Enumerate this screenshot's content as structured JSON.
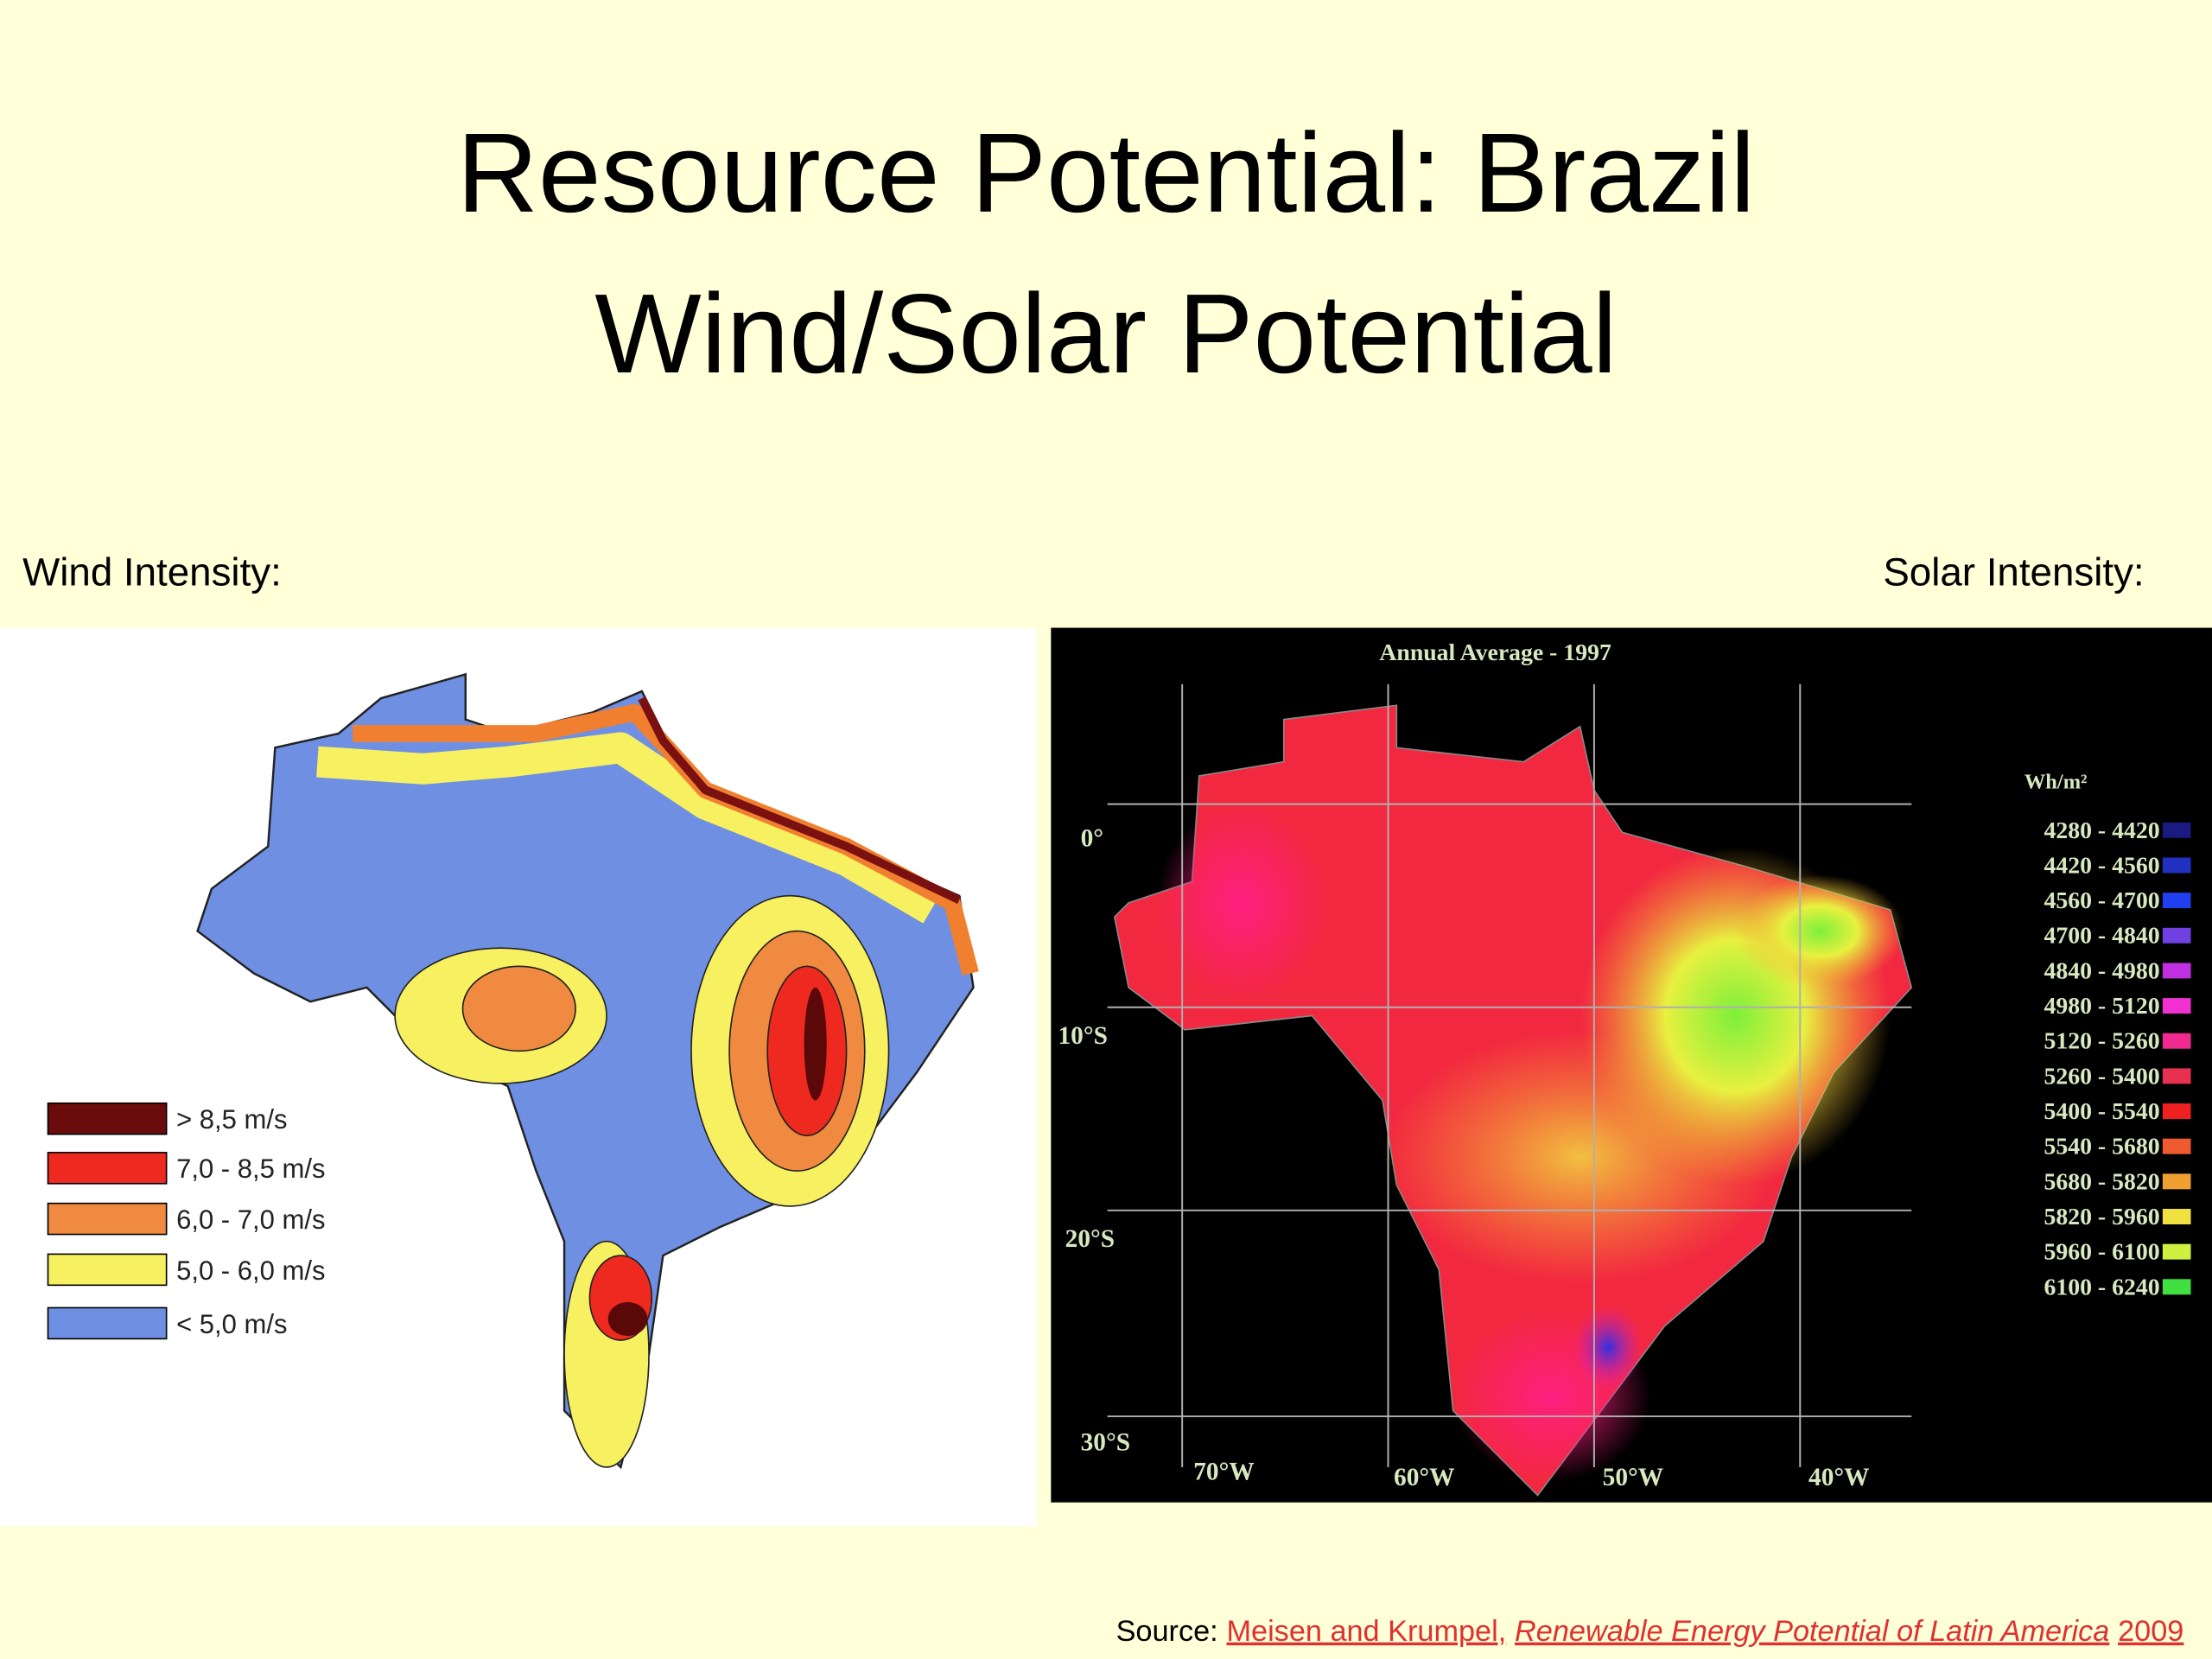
{
  "title": {
    "line1": "Resource Potential: Brazil",
    "line2": "Wind/Solar Potential"
  },
  "wind": {
    "label": "Wind Intensity:",
    "legend": [
      "> 8,5 m/s",
      "7,0 - 8,5 m/s",
      "6,0 - 7,0 m/s",
      "5,0 - 6,0 m/s",
      "< 5,0 m/s"
    ]
  },
  "solar": {
    "label": "Solar Intensity:",
    "map_title": "Annual Average - 1997",
    "unit": "Wh/m²",
    "legend": [
      "4280 - 4420",
      "4420 - 4560",
      "4560 - 4700",
      "4700 - 4840",
      "4840 - 4980",
      "4980 - 5120",
      "5120 - 5260",
      "5260 - 5400",
      "5400 - 5540",
      "5540 - 5680",
      "5680 - 5820",
      "5820 - 5960",
      "5960 - 6100",
      "6100 - 6240"
    ],
    "lat_labels": [
      "0°",
      "10°S",
      "20°S",
      "30°S"
    ],
    "lon_labels": [
      "70°W",
      "60°W",
      "50°W",
      "40°W"
    ]
  },
  "source": {
    "prefix": "Source:",
    "link_authors": "Meisen and Krumpel,",
    "link_title": "Renewable Energy Potential of Latin America",
    "year": "2009"
  }
}
